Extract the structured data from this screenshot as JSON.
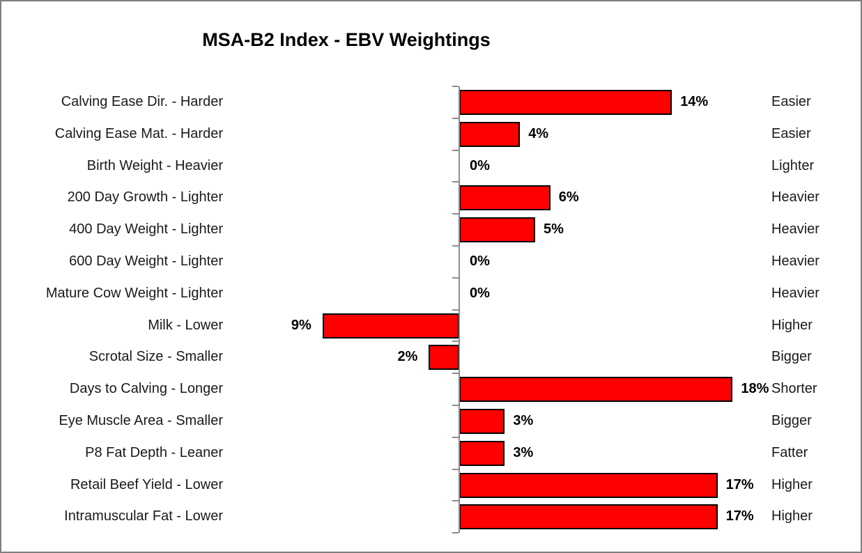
{
  "frame": {
    "background_color": "#FFFFFF",
    "border_color": "#7F7F7F"
  },
  "chart_data": {
    "type": "bar",
    "orientation": "horizontal",
    "title": "MSA-B2 Index - EBV Weightings",
    "value_unit": "%",
    "zero_baseline": true,
    "grid": false,
    "legend": false,
    "bar_color": "#FF0000",
    "bar_border_color": "#000000",
    "axis_color": "#8C8C8C",
    "text_color": "#1A1A1A",
    "title_color": "#000000",
    "rows": [
      {
        "label": "Calving Ease Dir. - Harder",
        "value": 14,
        "value_label": "14%",
        "direction": "Easier"
      },
      {
        "label": "Calving Ease Mat. - Harder",
        "value": 4,
        "value_label": "4%",
        "direction": "Easier"
      },
      {
        "label": "Birth Weight - Heavier",
        "value": 0,
        "value_label": "0%",
        "direction": "Lighter"
      },
      {
        "label": "200 Day Growth - Lighter",
        "value": 6,
        "value_label": "6%",
        "direction": "Heavier"
      },
      {
        "label": "400 Day Weight - Lighter",
        "value": 5,
        "value_label": "5%",
        "direction": "Heavier"
      },
      {
        "label": "600 Day Weight - Lighter",
        "value": 0,
        "value_label": "0%",
        "direction": "Heavier"
      },
      {
        "label": "Mature Cow Weight - Lighter",
        "value": 0,
        "value_label": "0%",
        "direction": "Heavier"
      },
      {
        "label": "Milk - Lower",
        "value": -9,
        "value_label": "9%",
        "direction": "Higher"
      },
      {
        "label": "Scrotal Size - Smaller",
        "value": -2,
        "value_label": "2%",
        "direction": "Bigger"
      },
      {
        "label": "Days to Calving - Longer",
        "value": 18,
        "value_label": "18%",
        "direction": "Shorter"
      },
      {
        "label": "Eye Muscle Area - Smaller",
        "value": 3,
        "value_label": "3%",
        "direction": "Bigger"
      },
      {
        "label": "P8 Fat Depth - Leaner",
        "value": 3,
        "value_label": "3%",
        "direction": "Fatter"
      },
      {
        "label": "Retail Beef Yield - Lower",
        "value": 17,
        "value_label": "17%",
        "direction": "Higher"
      },
      {
        "label": "Intramuscular Fat - Lower",
        "value": 17,
        "value_label": "17%",
        "direction": "Higher"
      }
    ]
  }
}
